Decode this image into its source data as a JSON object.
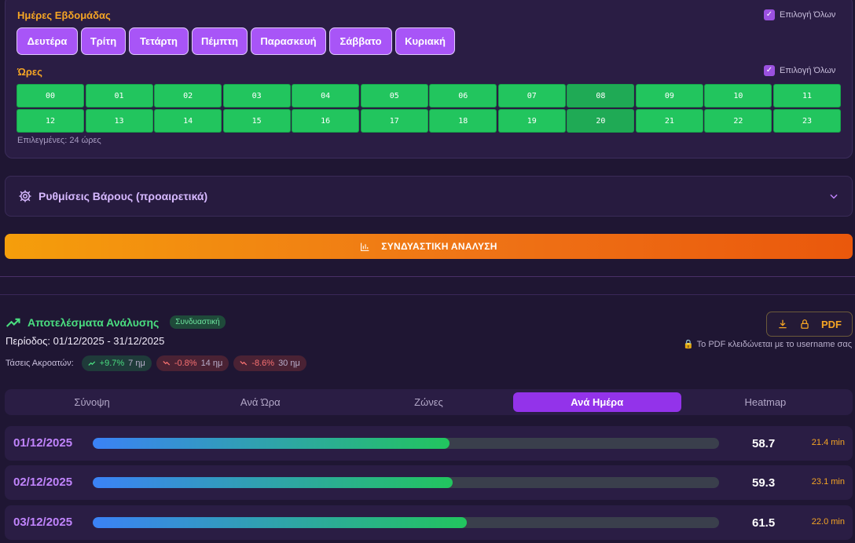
{
  "days_section": {
    "label": "Ημέρες Εβδομάδας",
    "select_all": "Επιλογή Όλων",
    "days": [
      "Δευτέρα",
      "Τρίτη",
      "Τετάρτη",
      "Πέμπτη",
      "Παρασκευή",
      "Σάββατο",
      "Κυριακή"
    ]
  },
  "hours_section": {
    "label": "Ώρες",
    "select_all": "Επιλογή Όλων",
    "hours": [
      "00",
      "01",
      "02",
      "03",
      "04",
      "05",
      "06",
      "07",
      "08",
      "09",
      "10",
      "11",
      "12",
      "13",
      "14",
      "15",
      "16",
      "17",
      "18",
      "19",
      "20",
      "21",
      "22",
      "23"
    ],
    "selected_text": "Επιλεγμένες: 24 ώρες"
  },
  "weights": {
    "title": "Ρυθμίσεις Βάρους (προαιρετικά)",
    "icon": "gear-icon"
  },
  "analyze_button": {
    "label": "ΣΥΝΔΥΑΣΤΙΚΗ ΑΝΑΛΥΣΗ",
    "icon": "bar-chart-icon"
  },
  "results": {
    "title": "Αποτελέσματα Ανάλυσης",
    "badge": "Συνδυαστική",
    "period": "Περίοδος: 01/12/2025 - 31/12/2025",
    "trends_label": "Τάσεις Ακροατών:",
    "trends": [
      {
        "value": "+9.7%",
        "period": "7 ημ",
        "direction": "up"
      },
      {
        "value": "-0.8%",
        "period": "14 ημ",
        "direction": "down"
      },
      {
        "value": "-8.6%",
        "period": "30 ημ",
        "direction": "down"
      }
    ],
    "pdf_label": "PDF",
    "pdf_note": "Το PDF κλειδώνεται με το username σας"
  },
  "tabs": [
    {
      "label": "Σύνοψη",
      "active": false
    },
    {
      "label": "Ανά Ώρα",
      "active": false
    },
    {
      "label": "Ζώνες",
      "active": false
    },
    {
      "label": "Ανά Ημέρα",
      "active": true
    },
    {
      "label": "Heatmap",
      "active": false
    }
  ],
  "day_rows": [
    {
      "date": "01/12/2025",
      "score": "58.7",
      "minutes": "21.4 min",
      "bar_fraction": 0.57
    },
    {
      "date": "02/12/2025",
      "score": "59.3",
      "minutes": "23.1 min",
      "bar_fraction": 0.575
    },
    {
      "date": "03/12/2025",
      "score": "61.5",
      "minutes": "22.0 min",
      "bar_fraction": 0.597
    }
  ],
  "colors": {
    "accent_purple": "#a855f7",
    "hour_green": "#22c55e",
    "label_orange": "#f5a524",
    "success_green": "#4ade80",
    "danger_red": "#f87171"
  }
}
